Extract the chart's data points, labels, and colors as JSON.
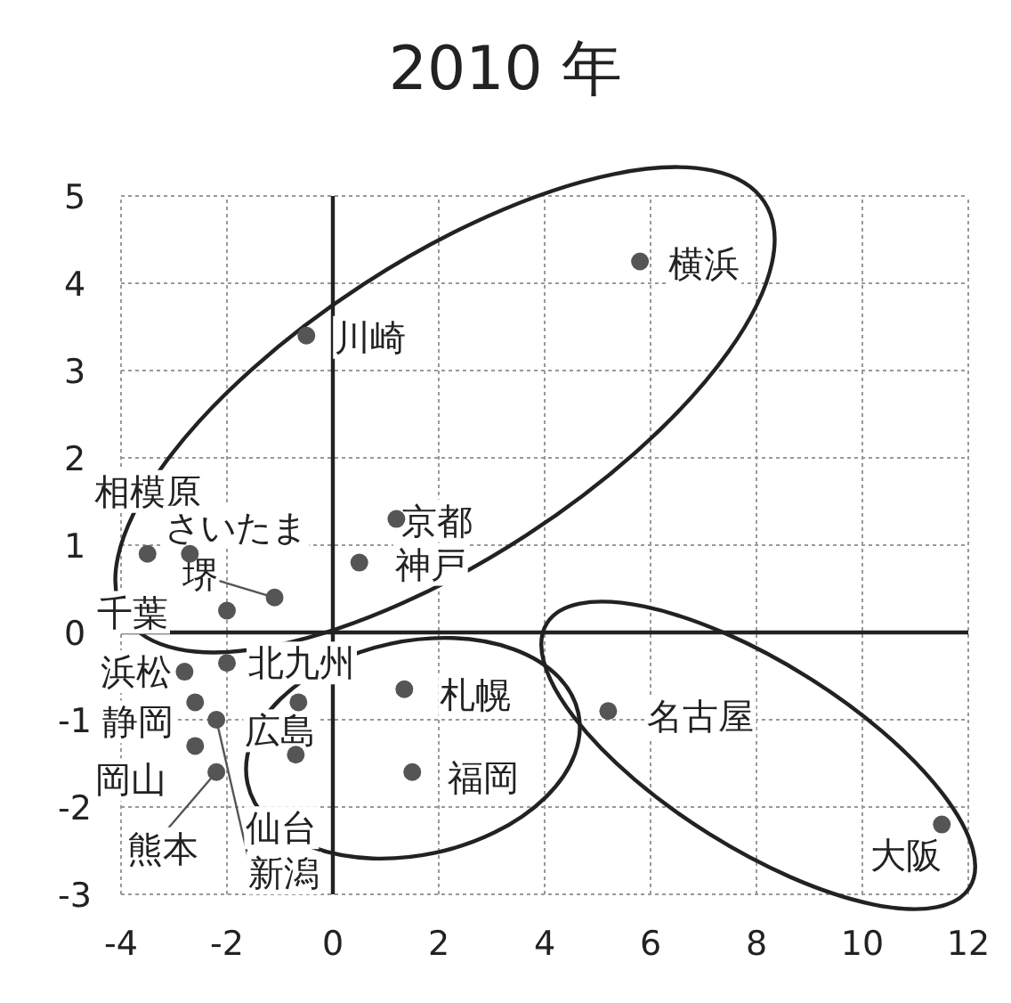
{
  "chart_data": {
    "type": "scatter",
    "title": "2010 年",
    "x": [
      5.8,
      -0.5,
      1.2,
      0.5,
      -3.5,
      -2.7,
      -1.1,
      -2.0,
      -2.0,
      -2.8,
      -2.6,
      -2.2,
      -2.6,
      -2.2,
      -0.65,
      -0.7,
      1.35,
      1.5,
      5.2,
      11.5
    ],
    "values": [
      4.25,
      3.4,
      1.3,
      0.8,
      0.9,
      0.9,
      0.4,
      0.25,
      -0.35,
      -0.45,
      -0.8,
      -1.0,
      -1.3,
      -1.6,
      -0.8,
      -1.4,
      -0.65,
      -1.6,
      -0.9,
      -2.2
    ],
    "color": "#555555",
    "marker": "circle",
    "xlim": [
      -4,
      12
    ],
    "ylim": [
      -3,
      5
    ],
    "xticks": [
      -4,
      -2,
      0,
      2,
      4,
      6,
      8,
      10,
      12
    ],
    "yticks": [
      -3,
      -2,
      -1,
      0,
      1,
      2,
      3,
      4,
      5
    ],
    "grid": true,
    "annotations": [
      {
        "text": "横浜",
        "x": 5.8,
        "y": 4.25
      },
      {
        "text": "川崎",
        "x": -0.5,
        "y": 3.4
      },
      {
        "text": "京都",
        "x": 1.2,
        "y": 1.3
      },
      {
        "text": "神戸",
        "x": 0.5,
        "y": 0.8
      },
      {
        "text": "相模原",
        "x": -3.5,
        "y": 0.9
      },
      {
        "text": "さいたま",
        "x": -2.7,
        "y": 0.9
      },
      {
        "text": "堺",
        "x": -1.1,
        "y": 0.4
      },
      {
        "text": "千葉",
        "x": -2.0,
        "y": 0.25
      },
      {
        "text": "北九州",
        "x": -2.0,
        "y": -0.35
      },
      {
        "text": "浜松",
        "x": -2.8,
        "y": -0.45
      },
      {
        "text": "静岡",
        "x": -2.6,
        "y": -0.8
      },
      {
        "text": "新潟",
        "x": -2.2,
        "y": -1.0
      },
      {
        "text": "岡山",
        "x": -2.6,
        "y": -1.3
      },
      {
        "text": "熊本",
        "x": -2.2,
        "y": -1.6
      },
      {
        "text": "広島",
        "x": -0.65,
        "y": -0.8
      },
      {
        "text": "仙台",
        "x": -0.7,
        "y": -1.4
      },
      {
        "text": "札幌",
        "x": 1.35,
        "y": -0.65
      },
      {
        "text": "福岡",
        "x": 1.5,
        "y": -1.6
      },
      {
        "text": "名古屋",
        "x": 5.2,
        "y": -0.9
      },
      {
        "text": "大阪",
        "x": 11.5,
        "y": -2.2
      }
    ]
  }
}
